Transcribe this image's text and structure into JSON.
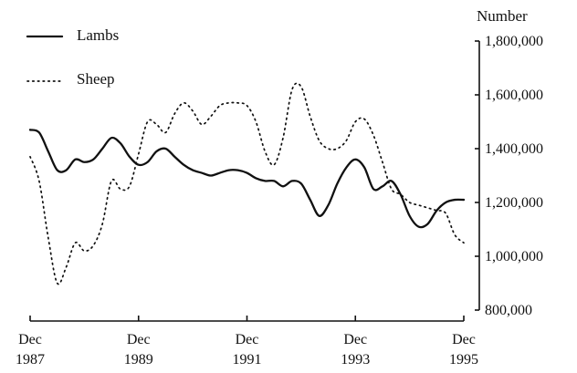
{
  "chart_data": {
    "type": "line",
    "ylabel": "Number",
    "ylim": [
      800000,
      1800000
    ],
    "yticks": [
      800000,
      1000000,
      1200000,
      1400000,
      1600000,
      1800000
    ],
    "ytick_labels": [
      "800,000",
      "1,000,000",
      "1,200,000",
      "1,400,000",
      "1,600,000",
      "1,800,000"
    ],
    "xlim": [
      1987.917,
      1995.917
    ],
    "xticks": [
      1987.917,
      1989.917,
      1991.917,
      1993.917,
      1995.917
    ],
    "xtick_labels": [
      [
        "Dec",
        "1987"
      ],
      [
        "Dec",
        "1989"
      ],
      [
        "Dec",
        "1991"
      ],
      [
        "Dec",
        "1993"
      ],
      [
        "Dec",
        "1995"
      ]
    ],
    "grid": false,
    "legend_position": "top-left",
    "series": [
      {
        "name": "Lambs",
        "style": "solid",
        "x": [
          1987.917,
          1988.083,
          1988.25,
          1988.417,
          1988.583,
          1988.75,
          1988.917,
          1989.083,
          1989.25,
          1989.417,
          1989.583,
          1989.75,
          1989.917,
          1990.083,
          1990.25,
          1990.417,
          1990.583,
          1990.75,
          1990.917,
          1991.083,
          1991.25,
          1991.417,
          1991.583,
          1991.75,
          1991.917,
          1992.083,
          1992.25,
          1992.417,
          1992.583,
          1992.75,
          1992.917,
          1993.083,
          1993.25,
          1993.417,
          1993.583,
          1993.75,
          1993.917,
          1994.083,
          1994.25,
          1994.417,
          1994.583,
          1994.75,
          1994.917,
          1995.083,
          1995.25,
          1995.417,
          1995.583,
          1995.75,
          1995.917
        ],
        "values": [
          1470000,
          1460000,
          1390000,
          1320000,
          1320000,
          1360000,
          1350000,
          1360000,
          1400000,
          1440000,
          1420000,
          1370000,
          1340000,
          1350000,
          1390000,
          1400000,
          1370000,
          1340000,
          1320000,
          1310000,
          1300000,
          1310000,
          1320000,
          1320000,
          1310000,
          1290000,
          1280000,
          1280000,
          1260000,
          1280000,
          1270000,
          1210000,
          1150000,
          1190000,
          1270000,
          1330000,
          1360000,
          1330000,
          1250000,
          1260000,
          1280000,
          1230000,
          1150000,
          1110000,
          1120000,
          1170000,
          1200000,
          1210000,
          1210000
        ]
      },
      {
        "name": "Sheep",
        "style": "dotted",
        "x": [
          1987.917,
          1988.083,
          1988.25,
          1988.417,
          1988.583,
          1988.75,
          1988.917,
          1989.083,
          1989.25,
          1989.417,
          1989.583,
          1989.75,
          1989.917,
          1990.083,
          1990.25,
          1990.417,
          1990.583,
          1990.75,
          1990.917,
          1991.083,
          1991.25,
          1991.417,
          1991.583,
          1991.75,
          1991.917,
          1992.083,
          1992.25,
          1992.417,
          1992.583,
          1992.75,
          1992.917,
          1993.083,
          1993.25,
          1993.417,
          1993.583,
          1993.75,
          1993.917,
          1994.083,
          1994.25,
          1994.417,
          1994.583,
          1994.75,
          1994.917,
          1995.083,
          1995.25,
          1995.417,
          1995.583,
          1995.75,
          1995.917
        ],
        "values": [
          1370000,
          1280000,
          1070000,
          900000,
          960000,
          1050000,
          1020000,
          1040000,
          1120000,
          1280000,
          1250000,
          1260000,
          1380000,
          1500000,
          1490000,
          1460000,
          1530000,
          1570000,
          1540000,
          1490000,
          1520000,
          1560000,
          1570000,
          1570000,
          1560000,
          1500000,
          1390000,
          1340000,
          1440000,
          1620000,
          1630000,
          1520000,
          1430000,
          1400000,
          1400000,
          1430000,
          1500000,
          1510000,
          1450000,
          1350000,
          1250000,
          1230000,
          1200000,
          1190000,
          1180000,
          1170000,
          1160000,
          1080000,
          1050000
        ]
      }
    ]
  }
}
